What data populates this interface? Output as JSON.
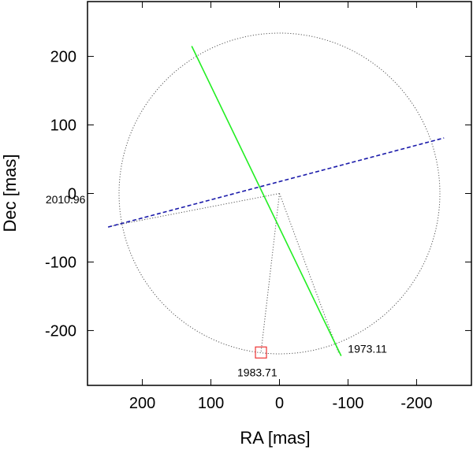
{
  "chart_data": {
    "type": "scatter",
    "title": "",
    "xlabel": "RA [mas]",
    "ylabel": "Dec [mas]",
    "xlim": [
      280,
      -280
    ],
    "ylim": [
      -280,
      280
    ],
    "x_ticks": [
      200,
      100,
      0,
      -100,
      -200
    ],
    "y_ticks": [
      200,
      100,
      0,
      -100,
      -200
    ],
    "grid": false,
    "legend": "none",
    "orbit_circle": {
      "center": [
        0,
        0
      ],
      "radius": 234,
      "style": "dotted",
      "color": "#555555"
    },
    "lines": [
      {
        "from": [
          128,
          215
        ],
        "to": [
          -90,
          -237
        ],
        "color": "#22ee22",
        "style": "solid"
      },
      {
        "from": [
          250,
          -49
        ],
        "to": [
          -240,
          81
        ],
        "color": "#1a1aaa",
        "style": "dashed"
      }
    ],
    "connectors": [
      {
        "from": [
          0,
          0
        ],
        "to": [
          248,
          -48
        ]
      },
      {
        "from": [
          0,
          0
        ],
        "to": [
          27,
          -232
        ]
      },
      {
        "from": [
          0,
          0
        ],
        "to": [
          -86,
          -232
        ]
      }
    ],
    "epochs": [
      {
        "label": "2010.96",
        "x": 248,
        "y": -48,
        "marker": "none"
      },
      {
        "label": "1983.71",
        "x": 27,
        "y": -232,
        "marker": "square",
        "color": "#ee3333"
      },
      {
        "label": "1973.11",
        "x": -86,
        "y": -232,
        "marker": "none"
      }
    ]
  }
}
